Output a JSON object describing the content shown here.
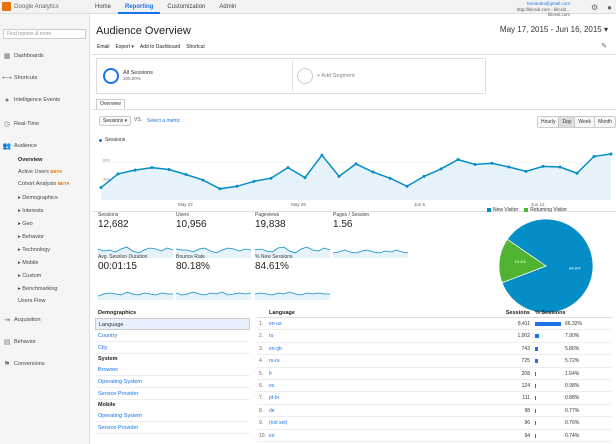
{
  "app": {
    "name": "Google Analytics"
  },
  "topnav": {
    "tabs": [
      "Home",
      "Reporting",
      "Customization",
      "Admin"
    ],
    "active": "Reporting"
  },
  "account": {
    "email": "fernando@gmail.com",
    "line2": "http://klicsiri.com - klicsiri...",
    "line3": "klicsiri.com"
  },
  "sidebar": {
    "search_placeholder": "Find reports & more",
    "dashboards": "Dashboards",
    "shortcuts": "Shortcuts",
    "intelligence": "Intelligence Events",
    "realtime": "Real-Time",
    "audience": "Audience",
    "audience_items": [
      "Overview",
      "Active Users",
      "Cohort Analysis",
      "▸ Demographics",
      "▸ Interests",
      "▸ Geo",
      "▸ Behavior",
      "▸ Technology",
      "▸ Mobile",
      "▸ Custom",
      "▸ Benchmarking",
      "Users Flow"
    ],
    "beta_label": "BETA",
    "acquisition": "Acquisition",
    "behavior": "Behavior",
    "conversions": "Conversions"
  },
  "main": {
    "title": "Audience Overview",
    "date_range": "May 17, 2015 - Jun 16, 2015 ▾",
    "toolbar": {
      "email": "Email",
      "export": "Export ▾",
      "add_dashboard": "Add to Dashboard",
      "shortcut": "Shortcut"
    },
    "segment": {
      "name": "All Sessions",
      "pct": "100.00%",
      "add": "+ Add Segment"
    },
    "overview_tab": "Overview",
    "metric": "Sessions ▾",
    "vs": "VS.",
    "select_metric": "Select a metric",
    "granularity": [
      "Hourly",
      "Day",
      "Week",
      "Month"
    ],
    "granularity_active": "Day",
    "legend": "Sessions"
  },
  "chart_data": {
    "type": "line",
    "series": [
      {
        "name": "Sessions",
        "values": [
          200,
          420,
          480,
          520,
          490,
          410,
          320,
          180,
          220,
          300,
          350,
          520,
          360,
          720,
          380,
          580,
          450,
          350,
          220,
          380,
          500,
          650,
          570,
          590,
          530,
          460,
          540,
          530,
          430,
          700,
          740
        ]
      }
    ],
    "x_ticks": [
      "May 22",
      "May 29",
      "Jun 5",
      "Jun 12"
    ],
    "y_ticks": [
      "600",
      "300"
    ],
    "ylim": [
      0,
      900
    ]
  },
  "scorecards": [
    {
      "label": "Sessions",
      "value": "12,682"
    },
    {
      "label": "Users",
      "value": "10,956"
    },
    {
      "label": "Pageviews",
      "value": "19,838"
    },
    {
      "label": "Pages / Session",
      "value": "1.56"
    },
    {
      "label": "Avg. Session Duration",
      "value": "00:01:15"
    },
    {
      "label": "Bounce Rate",
      "value": "80.18%"
    },
    {
      "label": "% New Sessions",
      "value": "84.61%"
    }
  ],
  "pie": {
    "legend": [
      "New Visitor",
      "Returning Visitor"
    ],
    "values": [
      84.6,
      15.4
    ],
    "labels": [
      "84.6%",
      "15.4%"
    ],
    "colors": [
      "#058dc7",
      "#50b432"
    ]
  },
  "demographics": {
    "head": "Demographics",
    "items": [
      "Language",
      "Country",
      "City"
    ],
    "selected": "Language",
    "system_head": "System",
    "system_items": [
      "Browser",
      "Operating System",
      "Service Provider"
    ],
    "mobile_head": "Mobile",
    "mobile_items": [
      "Operating System",
      "Service Provider"
    ]
  },
  "lang_table": {
    "headers": {
      "lang": "Language",
      "sess": "Sessions",
      "pct": "% Sessions"
    },
    "rows": [
      {
        "idx": "1.",
        "lang": "en-us",
        "sess": "8,411",
        "pct": "66.32%",
        "frac": 0.6632
      },
      {
        "idx": "2.",
        "lang": "ru",
        "sess": "1,002",
        "pct": "7.90%",
        "frac": 0.079
      },
      {
        "idx": "3.",
        "lang": "en-gb",
        "sess": "743",
        "pct": "5.86%",
        "frac": 0.0586
      },
      {
        "idx": "4.",
        "lang": "ru-ru",
        "sess": "725",
        "pct": "5.72%",
        "frac": 0.0572
      },
      {
        "idx": "5.",
        "lang": "fr",
        "sess": "208",
        "pct": "1.64%",
        "frac": 0.0164
      },
      {
        "idx": "6.",
        "lang": "es",
        "sess": "124",
        "pct": "0.98%",
        "frac": 0.0098
      },
      {
        "idx": "7.",
        "lang": "pt-br",
        "sess": "111",
        "pct": "0.88%",
        "frac": 0.0088
      },
      {
        "idx": "8.",
        "lang": "de",
        "sess": "98",
        "pct": "0.77%",
        "frac": 0.0077
      },
      {
        "idx": "9.",
        "lang": "(not set)",
        "sess": "96",
        "pct": "0.76%",
        "frac": 0.0076
      },
      {
        "idx": "10.",
        "lang": "en",
        "sess": "94",
        "pct": "0.74%",
        "frac": 0.0074
      }
    ]
  },
  "colors": {
    "accent": "#1a73e8",
    "chart_line": "#058dc7",
    "chart_fill": "#e6f3fa"
  }
}
